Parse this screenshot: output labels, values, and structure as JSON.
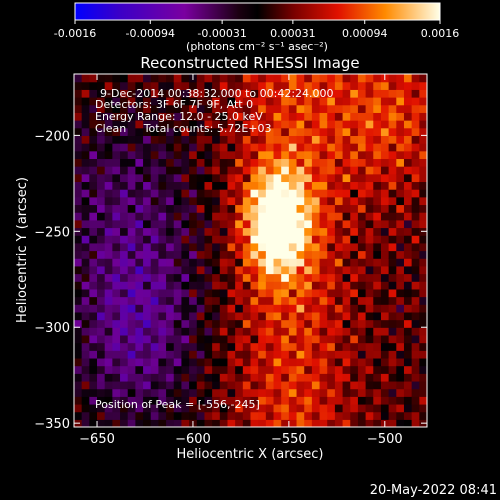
{
  "chart_data": {
    "type": "heatmap",
    "title": "Reconstructed RHESSI Image",
    "xlabel": "Heliocentric X (arcsec)",
    "ylabel": "Heliocentric Y (arcsec)",
    "xlim": [
      -662,
      -478
    ],
    "ylim": [
      -352,
      -168
    ],
    "xticks": [
      -650,
      -600,
      -550,
      -500
    ],
    "yticks": [
      -200,
      -250,
      -300,
      -350
    ],
    "colorbar": {
      "ticks": [
        "-0.0016",
        "-0.00094",
        "-0.00031",
        "0.00031",
        "0.00094",
        "0.0016"
      ],
      "range": [
        -0.0016,
        0.0016
      ],
      "units_label": "(photons cm⁻² s⁻¹ asec⁻²)"
    },
    "annotations": [
      "9-Dec-2014 00:38:32.000 to 00:42:24.000",
      "Detectors: 3F 6F 7F 9F, Att 0",
      "Energy Range: 12.0 - 25.0 keV",
      "Clean     Total counts: 5.72E+03"
    ],
    "peak_label": "Position of Peak = [-556,-245]",
    "peak": [
      -556,
      -245
    ],
    "grid": false,
    "legend": "none"
  },
  "footer": {
    "timestamp": "20-May-2022 08:41"
  },
  "colors": {
    "background": "#000000",
    "text": "#ffffff"
  }
}
